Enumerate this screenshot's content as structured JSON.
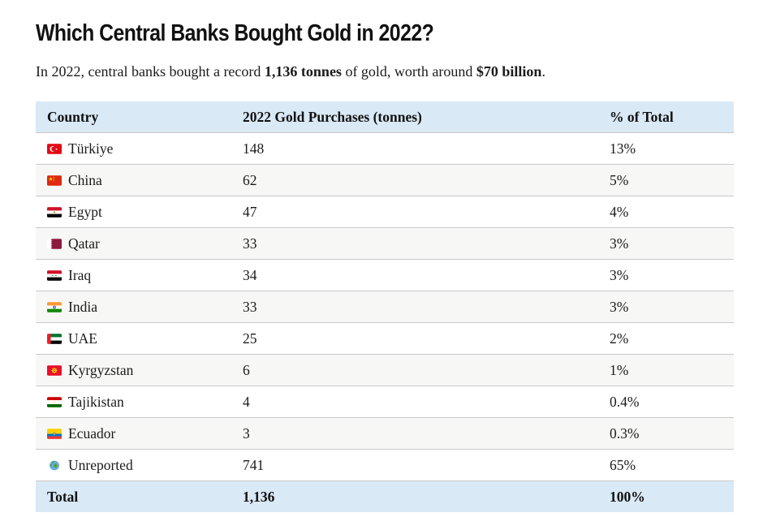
{
  "page": {
    "title": "Which Central Banks Bought Gold in 2022?",
    "subtitle": {
      "pre": "In 2022, central banks bought a record ",
      "bold1": "1,136 tonnes",
      "mid": " of gold, worth around ",
      "bold2": "$70 billion",
      "post": "."
    }
  },
  "table": {
    "headers": [
      "Country",
      "2022 Gold Purchases (tonnes)",
      "% of Total"
    ],
    "rows": [
      {
        "icon": "turkiye-flag-icon",
        "country": "Türkiye",
        "tonnes": "148",
        "pct": "13%"
      },
      {
        "icon": "china-flag-icon",
        "country": "China",
        "tonnes": "62",
        "pct": "5%"
      },
      {
        "icon": "egypt-flag-icon",
        "country": "Egypt",
        "tonnes": "47",
        "pct": "4%"
      },
      {
        "icon": "qatar-flag-icon",
        "country": "Qatar",
        "tonnes": "33",
        "pct": "3%"
      },
      {
        "icon": "iraq-flag-icon",
        "country": "Iraq",
        "tonnes": "34",
        "pct": "3%"
      },
      {
        "icon": "india-flag-icon",
        "country": "India",
        "tonnes": "33",
        "pct": "3%"
      },
      {
        "icon": "uae-flag-icon",
        "country": "UAE",
        "tonnes": "25",
        "pct": "2%"
      },
      {
        "icon": "kyrgyzstan-flag-icon",
        "country": "Kyrgyzstan",
        "tonnes": "6",
        "pct": "1%"
      },
      {
        "icon": "tajikistan-flag-icon",
        "country": "Tajikistan",
        "tonnes": "4",
        "pct": "0.4%"
      },
      {
        "icon": "ecuador-flag-icon",
        "country": "Ecuador",
        "tonnes": "3",
        "pct": "0.3%"
      },
      {
        "icon": "globe-icon",
        "country": "Unreported",
        "tonnes": "741",
        "pct": "65%"
      }
    ],
    "total": {
      "label": "Total",
      "tonnes": "1,136",
      "pct": "100%"
    }
  },
  "colors": {
    "header_bg": "#d9e9f5",
    "alt_row_bg": "#f7f7f6",
    "row_border": "#c9c9c9",
    "text": "#191919"
  },
  "chart_data": {
    "type": "table",
    "title": "Which Central Banks Bought Gold in 2022?",
    "subtitle": "In 2022, central banks bought a record 1,136 tonnes of gold, worth around $70 billion.",
    "columns": [
      "Country",
      "2022 Gold Purchases (tonnes)",
      "% of Total"
    ],
    "rows": [
      [
        "Türkiye",
        148,
        "13%"
      ],
      [
        "China",
        62,
        "5%"
      ],
      [
        "Egypt",
        47,
        "4%"
      ],
      [
        "Qatar",
        33,
        "3%"
      ],
      [
        "Iraq",
        34,
        "3%"
      ],
      [
        "India",
        33,
        "3%"
      ],
      [
        "UAE",
        25,
        "2%"
      ],
      [
        "Kyrgyzstan",
        6,
        "1%"
      ],
      [
        "Tajikistan",
        4,
        "0.4%"
      ],
      [
        "Ecuador",
        3,
        "0.3%"
      ],
      [
        "Unreported",
        741,
        "65%"
      ]
    ],
    "total_row": [
      "Total",
      1136,
      "100%"
    ]
  }
}
